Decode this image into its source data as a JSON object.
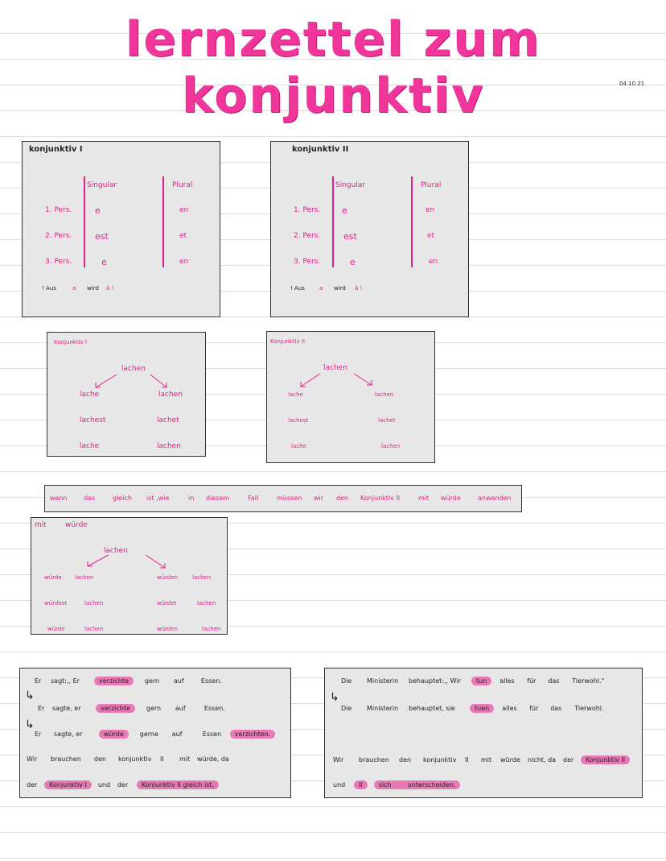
{
  "title": "lernzettel zum konjunktiv",
  "date": "04.10.21",
  "k1_table": {
    "heading": "konjunktiv I",
    "col_singular": "Singular",
    "col_plural": "Plural",
    "rows": [
      {
        "person": "1. Pers.",
        "sing": "e",
        "plur": "en"
      },
      {
        "person": "2. Pers.",
        "sing": "est",
        "plur": "et"
      },
      {
        "person": "3. Pers.",
        "sing": "e",
        "plur": "en"
      }
    ],
    "note": [
      "! Aus",
      "a",
      "wird",
      "ä !"
    ]
  },
  "k2_table": {
    "heading": "konjunktiv II",
    "col_singular": "Singular",
    "col_plural": "Plural",
    "rows": [
      {
        "person": "1. Pers.",
        "sing": "e",
        "plur": "en"
      },
      {
        "person": "2. Pers.",
        "sing": "est",
        "plur": "et"
      },
      {
        "person": "3. Pers.",
        "sing": "e",
        "plur": "en"
      }
    ],
    "note": [
      "! Aus",
      "a",
      "wird",
      "ä !"
    ]
  },
  "k1_example": {
    "heading": "Konjunktiv I",
    "verb": "lachen",
    "left": [
      "lache",
      "lachest",
      "lache"
    ],
    "right": [
      "lachen",
      "lachet",
      "lachen"
    ]
  },
  "k2_example": {
    "heading": "Konjunktiv II",
    "verb": "lachen",
    "left": [
      "lache",
      "lachest",
      "lache"
    ],
    "right": [
      "lachen",
      "lachet",
      "lachen"
    ]
  },
  "rule_line": [
    "wenn",
    "das",
    "gleich",
    "ist ,wie",
    "in",
    "diesem",
    "Fall",
    "müssen",
    "wir",
    "den",
    "Konjunktiv II",
    "mit",
    "würde",
    "anwenden"
  ],
  "wuerde_example": {
    "heading_a": "mit",
    "heading_b": "würde",
    "verb": "lachen",
    "rows": [
      [
        "würde",
        "lachen",
        "würden",
        "lachen"
      ],
      [
        "würdest",
        "lachen",
        "würdet",
        "lachen"
      ],
      [
        "würde",
        "lachen",
        "würden",
        "lachen"
      ]
    ]
  },
  "sentences_left": {
    "line1": [
      "Er",
      "sagt:,, Er",
      "verzichte",
      "gern",
      "auf",
      "Essen."
    ],
    "line2": [
      "Er",
      "sagte, er",
      "verzichte",
      "gern",
      "auf",
      "Essen."
    ],
    "line3": [
      "Er",
      "sagte, er",
      "würde",
      "gerne",
      "auf",
      "Essen",
      "verzichten."
    ],
    "line4": [
      "Wir",
      "brauchen",
      "den",
      "konjunktiv",
      "II",
      "mit",
      "würde, da"
    ],
    "line5": [
      "der",
      "Konjunktiv I",
      "und",
      "der",
      "Konjunktiv II gleich ist."
    ]
  },
  "sentences_right": {
    "line1": [
      "Die",
      "Ministerin",
      "behauptet:,, Wir",
      "tun",
      "alles",
      "für",
      "das",
      "Tierwohl.\""
    ],
    "line2": [
      "Die",
      "Ministerin",
      "behauptet, sie",
      "tuen",
      "alles",
      "für",
      "das",
      "Tierwohl."
    ],
    "line4": [
      "Wir",
      "brauchen",
      "den",
      "konjunktiv",
      "II",
      "mit",
      "würde",
      "nicht, da",
      "der",
      "Konjunktiv II"
    ],
    "line5": [
      "und",
      "II",
      "sich",
      "unterscheiden."
    ]
  },
  "colors": {
    "accent": "#f0369b",
    "highlight": "#e77ab4",
    "box": "#e7e7e7"
  }
}
